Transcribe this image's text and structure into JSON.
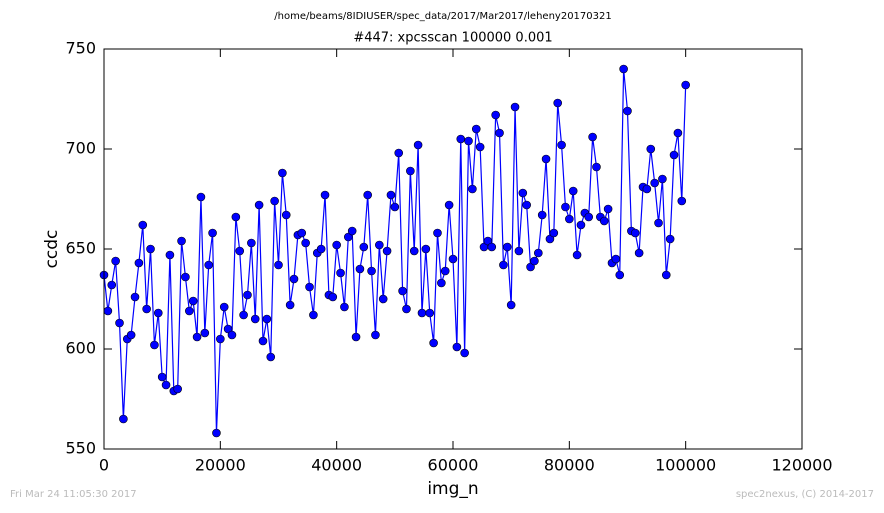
{
  "chart_data": {
    "type": "line",
    "title": "/home/beams/8IDIUSER/spec_data/2017/Mar2017/leheny20170321",
    "subtitle": "#447: xpcsscan 100000 0.001",
    "x_label": "img_n",
    "y_label": "ccdc",
    "footer_left": "Fri Mar 24 11:05:30 2017",
    "footer_right": "spec2nexus, (C) 2014-2017",
    "xlim": [
      0,
      120000
    ],
    "xticks": [
      0,
      20000,
      40000,
      60000,
      80000,
      100000,
      120000
    ],
    "ylim": [
      550,
      750
    ],
    "yticks": [
      550,
      600,
      650,
      700,
      750
    ],
    "grid": false,
    "x": [
      0,
      667,
      1333,
      2000,
      2667,
      3333,
      4000,
      4667,
      5333,
      6000,
      6667,
      7333,
      8000,
      8667,
      9333,
      10000,
      10667,
      11333,
      12000,
      12667,
      13333,
      14000,
      14667,
      15333,
      16000,
      16667,
      17333,
      18000,
      18667,
      19333,
      20000,
      20667,
      21333,
      22000,
      22667,
      23333,
      24000,
      24667,
      25333,
      26000,
      26667,
      27333,
      28000,
      28667,
      29333,
      30000,
      30667,
      31333,
      32000,
      32667,
      33333,
      34000,
      34667,
      35333,
      36000,
      36667,
      37333,
      38000,
      38667,
      39333,
      40000,
      40667,
      41333,
      42000,
      42667,
      43333,
      44000,
      44667,
      45333,
      46000,
      46667,
      47333,
      48000,
      48667,
      49333,
      50000,
      50667,
      51333,
      52000,
      52667,
      53333,
      54000,
      54667,
      55333,
      56000,
      56667,
      57333,
      58000,
      58667,
      59333,
      60000,
      60667,
      61333,
      62000,
      62667,
      63333,
      64000,
      64667,
      65333,
      66000,
      66667,
      67333,
      68000,
      68667,
      69333,
      70000,
      70667,
      71333,
      72000,
      72667,
      73333,
      74000,
      74667,
      75333,
      76000,
      76667,
      77333,
      78000,
      78667,
      79333,
      80000,
      80667,
      81333,
      82000,
      82667,
      83333,
      84000,
      84667,
      85333,
      86000,
      86667,
      87333,
      88000,
      88667,
      89333,
      90000,
      90667,
      91333,
      92000,
      92667,
      93333,
      94000,
      94667,
      95333,
      96000,
      96667,
      97333,
      98000,
      98667,
      99333,
      100000
    ],
    "series": [
      {
        "color": "#0000ff",
        "values": [
          637,
          619,
          632,
          644,
          613,
          565,
          605,
          607,
          626,
          643,
          662,
          620,
          650,
          602,
          618,
          586,
          582,
          647,
          579,
          580,
          654,
          636,
          619,
          624,
          606,
          676,
          608,
          642,
          658,
          558,
          605,
          621,
          610,
          607,
          666,
          649,
          617,
          627,
          653,
          615,
          672,
          604,
          615,
          596,
          674,
          642,
          688,
          667,
          622,
          635,
          657,
          658,
          653,
          631,
          617,
          648,
          650,
          677,
          627,
          626,
          652,
          638,
          621,
          656,
          659,
          606,
          640,
          651,
          677,
          639,
          607,
          652,
          625,
          649,
          677,
          671,
          698,
          629,
          620,
          689,
          649,
          702,
          618,
          650,
          618,
          603,
          658,
          633,
          639,
          672,
          645,
          601,
          705,
          598,
          704,
          680,
          710,
          701,
          651,
          654,
          651,
          717,
          708,
          642,
          651,
          622,
          721,
          649,
          678,
          672,
          641,
          644,
          648,
          667,
          695,
          655,
          658,
          723,
          702,
          671,
          665,
          679,
          647,
          662,
          668,
          666,
          706,
          691,
          666,
          664,
          670,
          643,
          645,
          637,
          740,
          719,
          659,
          658,
          648,
          681,
          680,
          700,
          683,
          663,
          685,
          637,
          655,
          697,
          708,
          674,
          732
        ]
      }
    ]
  }
}
